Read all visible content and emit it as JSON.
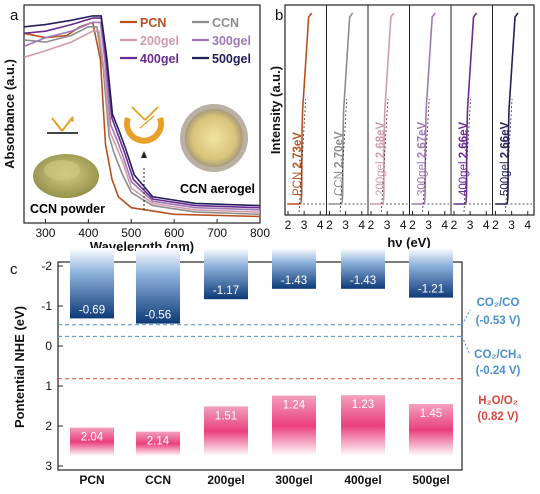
{
  "panels": {
    "a": "a",
    "b": "b",
    "c": "c"
  },
  "chart_data": [
    {
      "id": "a",
      "type": "line",
      "xlabel": "Wavelength (nm)",
      "ylabel": "Absorbance (a.u.)",
      "xlim": [
        250,
        800
      ],
      "xticks": [
        300,
        400,
        500,
        600,
        700,
        800
      ],
      "legend": [
        "PCN",
        "CCN",
        "200gel",
        "300gel",
        "400gel",
        "500gel"
      ],
      "annotations": [
        "CCN powder",
        "CCN aerogel"
      ],
      "series": [
        {
          "name": "PCN",
          "color": "#b8501e",
          "points": [
            [
              250,
              0.87
            ],
            [
              300,
              0.85
            ],
            [
              350,
              0.86
            ],
            [
              380,
              0.9
            ],
            [
              410,
              0.92
            ],
            [
              428,
              0.75
            ],
            [
              440,
              0.36
            ],
            [
              455,
              0.2
            ],
            [
              470,
              0.12
            ],
            [
              500,
              0.07
            ],
            [
              600,
              0.04
            ],
            [
              800,
              0.03
            ]
          ]
        },
        {
          "name": "CCN",
          "color": "#8d8d8d",
          "points": [
            [
              250,
              0.84
            ],
            [
              300,
              0.83
            ],
            [
              360,
              0.86
            ],
            [
              400,
              0.9
            ],
            [
              420,
              0.9
            ],
            [
              435,
              0.7
            ],
            [
              448,
              0.4
            ],
            [
              460,
              0.32
            ],
            [
              480,
              0.22
            ],
            [
              500,
              0.14
            ],
            [
              550,
              0.08
            ],
            [
              650,
              0.05
            ],
            [
              800,
              0.04
            ]
          ]
        },
        {
          "name": "200gel",
          "color": "#d39aac",
          "points": [
            [
              250,
              0.76
            ],
            [
              300,
              0.79
            ],
            [
              360,
              0.83
            ],
            [
              410,
              0.88
            ],
            [
              425,
              0.88
            ],
            [
              438,
              0.68
            ],
            [
              450,
              0.42
            ],
            [
              465,
              0.35
            ],
            [
              480,
              0.28
            ],
            [
              500,
              0.16
            ],
            [
              550,
              0.09
            ],
            [
              650,
              0.06
            ],
            [
              800,
              0.05
            ]
          ]
        },
        {
          "name": "300gel",
          "color": "#9f78b5",
          "points": [
            [
              250,
              0.81
            ],
            [
              300,
              0.85
            ],
            [
              360,
              0.88
            ],
            [
              410,
              0.92
            ],
            [
              428,
              0.92
            ],
            [
              440,
              0.72
            ],
            [
              452,
              0.45
            ],
            [
              467,
              0.38
            ],
            [
              482,
              0.3
            ],
            [
              500,
              0.19
            ],
            [
              550,
              0.1
            ],
            [
              650,
              0.07
            ],
            [
              800,
              0.06
            ]
          ]
        },
        {
          "name": "400gel",
          "color": "#6a2b91",
          "points": [
            [
              250,
              0.87
            ],
            [
              300,
              0.88
            ],
            [
              360,
              0.91
            ],
            [
              410,
              0.94
            ],
            [
              430,
              0.94
            ],
            [
              442,
              0.74
            ],
            [
              455,
              0.48
            ],
            [
              470,
              0.4
            ],
            [
              485,
              0.32
            ],
            [
              505,
              0.2
            ],
            [
              550,
              0.11
            ],
            [
              650,
              0.08
            ],
            [
              800,
              0.07
            ]
          ]
        },
        {
          "name": "500gel",
          "color": "#23205a",
          "points": [
            [
              250,
              0.9
            ],
            [
              300,
              0.91
            ],
            [
              360,
              0.93
            ],
            [
              410,
              0.95
            ],
            [
              430,
              0.95
            ],
            [
              443,
              0.76
            ],
            [
              456,
              0.5
            ],
            [
              472,
              0.42
            ],
            [
              487,
              0.34
            ],
            [
              507,
              0.22
            ],
            [
              550,
              0.12
            ],
            [
              650,
              0.09
            ],
            [
              800,
              0.08
            ]
          ]
        }
      ]
    },
    {
      "id": "b",
      "type": "line",
      "xlabel": "hν (eV)",
      "ylabel": "Intensity (a.u.)",
      "xticks": [
        "2",
        "3",
        "4",
        "2",
        "3",
        "4",
        "2",
        "3",
        "4",
        "2",
        "3",
        "4",
        "2",
        "3",
        "4",
        "2",
        "3",
        "4"
      ],
      "series": [
        {
          "name": "PCN",
          "label": "PCN",
          "value": "2.73eV",
          "bandgap": 2.73,
          "color": "#b8501e"
        },
        {
          "name": "CCN",
          "label": "CCN",
          "value": "2.70eV",
          "bandgap": 2.7,
          "color": "#8d8d8d"
        },
        {
          "name": "200gel",
          "label": "200gel",
          "value": "2.68eV",
          "bandgap": 2.68,
          "color": "#d39aac"
        },
        {
          "name": "300gel",
          "label": "300gel",
          "value": "2.67eV",
          "bandgap": 2.67,
          "color": "#9f78b5"
        },
        {
          "name": "400gel",
          "label": "400gel",
          "value": "2.66eV",
          "bandgap": 2.66,
          "color": "#6a2b91"
        },
        {
          "name": "500gel",
          "label": "500gel",
          "value": "2.66eV",
          "bandgap": 2.66,
          "color": "#23205a"
        }
      ]
    },
    {
      "id": "c",
      "type": "bar",
      "ylabel": "Pontential NHE (eV)",
      "ylim": [
        -2.5,
        3
      ],
      "yticks": [
        "-2",
        "-1",
        "0",
        "1",
        "2",
        "3"
      ],
      "categories": [
        "PCN",
        "CCN",
        "200gel",
        "300gel",
        "400gel",
        "500gel"
      ],
      "cb": [
        "-0.69",
        "-0.56",
        "-1.17",
        "-1.43",
        "-1.43",
        "-1.21"
      ],
      "vb": [
        "2.04",
        "2.14",
        "1.51",
        "1.24",
        "1.23",
        "1.45"
      ],
      "refs": [
        {
          "name": "CO2/CO",
          "label": "CO₂/CO",
          "value_label": "(-0.53 V)",
          "potential": -0.53,
          "color": "#4a8fd0"
        },
        {
          "name": "CO2/CH4",
          "label": "CO₂/CH₄",
          "value_label": "(-0.24 V)",
          "potential": -0.24,
          "color": "#4a8fd0"
        },
        {
          "name": "H2O/O2",
          "label": "H₂O/O₂",
          "value_label": "(0.82 V)",
          "potential": 0.82,
          "color": "#d9463c"
        }
      ],
      "colors": {
        "cb": "#0d3a78",
        "vb": "#e01f64"
      }
    }
  ]
}
